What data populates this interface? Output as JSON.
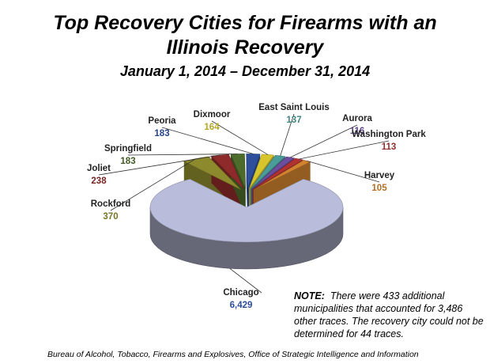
{
  "chart_data": {
    "type": "pie",
    "title": "Top Recovery Cities for Firearms with an Illinois Recovery",
    "subtitle": "January 1, 2014 – December 31, 2014",
    "categories": [
      "Chicago",
      "Rockford",
      "Joliet",
      "Springfield",
      "Peoria",
      "Dixmoor",
      "East Saint Louis",
      "Aurora",
      "Washington Park",
      "Harvey"
    ],
    "values": [
      6429,
      370,
      238,
      183,
      183,
      164,
      137,
      116,
      113,
      105
    ],
    "value_labels": [
      "6,429",
      "370",
      "238",
      "183",
      "183",
      "164",
      "137",
      "116",
      "113",
      "105"
    ],
    "colors": [
      "#b9bddb",
      "#8c8a2c",
      "#8e2a2a",
      "#4d6b2b",
      "#2d4f9c",
      "#d6c52c",
      "#4a9c9a",
      "#6c4d9e",
      "#b23232",
      "#d2832f"
    ],
    "note": {
      "label": "NOTE:",
      "text": "There were 433 additional municipalities that accounted for 3,486 other traces.  The recovery city could not be determined for 44 traces."
    },
    "source": "Bureau of Alcohol, Tobacco, Firearms and Explosives, Office of Strategic Intelligence and Information"
  }
}
